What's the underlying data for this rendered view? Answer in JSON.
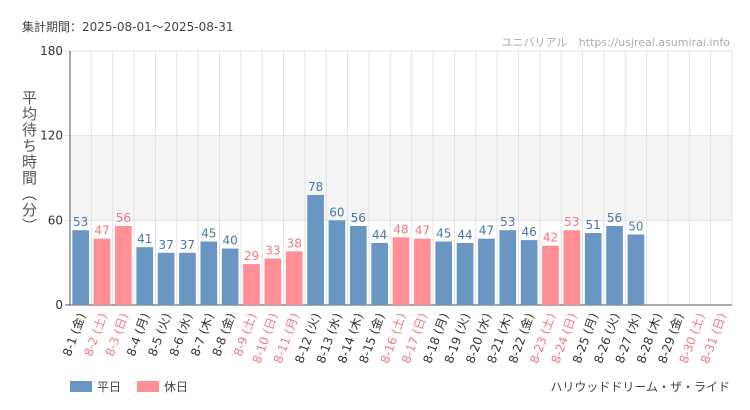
{
  "header": {
    "period": "集計期間：2025-08-01〜2025-08-31",
    "site_name": "ユニバリアル",
    "site_url": "https://usjreal.asumirai.info"
  },
  "attraction": "ハリウッドドリーム・ザ・ライド",
  "legend": {
    "weekday_label": "平日",
    "holiday_label": "休日"
  },
  "colors": {
    "weekday": "#6a96c4",
    "holiday": "#ff8f94",
    "weekday_text": "#4a77a8",
    "holiday_text": "#f07a80",
    "band": "#f4f4f4",
    "grid": "#e2e2e2",
    "axis": "#555555"
  },
  "chart_data": {
    "type": "bar",
    "ylabel": "平均待ち時間（分）",
    "ylim": [
      0,
      180
    ],
    "yticks": [
      0,
      60,
      120,
      180
    ],
    "highlight_band": [
      60,
      120
    ],
    "categories": [
      "8-1 (金)",
      "8-2 (土)",
      "8-3 (日)",
      "8-4 (月)",
      "8-5 (火)",
      "8-6 (水)",
      "8-7 (木)",
      "8-8 (金)",
      "8-9 (土)",
      "8-10 (日)",
      "8-11 (月)",
      "8-12 (火)",
      "8-13 (水)",
      "8-14 (木)",
      "8-15 (金)",
      "8-16 (土)",
      "8-17 (日)",
      "8-18 (月)",
      "8-19 (火)",
      "8-20 (水)",
      "8-21 (木)",
      "8-22 (金)",
      "8-23 (土)",
      "8-24 (日)",
      "8-25 (月)",
      "8-26 (火)",
      "8-27 (水)",
      "8-28 (木)",
      "8-29 (金)",
      "8-30 (土)",
      "8-31 (日)"
    ],
    "day_types": [
      "weekday",
      "holiday",
      "holiday",
      "weekday",
      "weekday",
      "weekday",
      "weekday",
      "weekday",
      "holiday",
      "holiday",
      "holiday",
      "weekday",
      "weekday",
      "weekday",
      "weekday",
      "holiday",
      "holiday",
      "weekday",
      "weekday",
      "weekday",
      "weekday",
      "weekday",
      "holiday",
      "holiday",
      "weekday",
      "weekday",
      "weekday",
      "weekday",
      "weekday",
      "holiday",
      "holiday"
    ],
    "values": [
      53,
      47,
      56,
      41,
      37,
      37,
      45,
      40,
      29,
      33,
      38,
      78,
      60,
      56,
      44,
      48,
      47,
      45,
      44,
      47,
      53,
      46,
      42,
      53,
      51,
      56,
      50,
      null,
      null,
      null,
      null
    ]
  }
}
